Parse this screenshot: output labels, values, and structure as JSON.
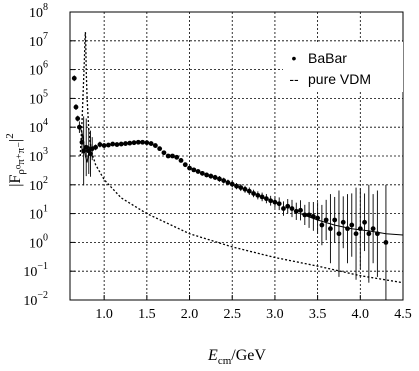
{
  "chart_data": {
    "type": "scatter",
    "title": "",
    "ylabel_main": "|F",
    "ylabel_sub": "ρ⁰π⁺π⁻",
    "ylabel_tail": "|",
    "ylabel_exp": "2",
    "xlabel_main": "E",
    "xlabel_sub": "cm",
    "xlabel_unit": "/GeV",
    "xlim": [
      0.6,
      4.5
    ],
    "ylim_exp": [
      -2,
      8
    ],
    "log_y": true,
    "grid": true,
    "legend_position": "right",
    "xticks": [
      1.0,
      1.5,
      2.0,
      2.5,
      3.0,
      3.5,
      4.0,
      4.5
    ],
    "xtick_labels": [
      "1.0",
      "1.5",
      "2.0",
      "2.5",
      "3.0",
      "3.5",
      "4.0",
      "4.5"
    ],
    "ytick_labels": [
      {
        "base": "10",
        "exp": "−2"
      },
      {
        "base": "10",
        "exp": "−1"
      },
      {
        "base": "10",
        "exp": "0"
      },
      {
        "base": "10",
        "exp": "1"
      },
      {
        "base": "10",
        "exp": "2"
      },
      {
        "base": "10",
        "exp": "3"
      },
      {
        "base": "10",
        "exp": "4"
      },
      {
        "base": "10",
        "exp": "5"
      },
      {
        "base": "10",
        "exp": "6"
      },
      {
        "base": "10",
        "exp": "7"
      },
      {
        "base": "10",
        "exp": "8"
      }
    ],
    "legend": [
      {
        "marker": "•",
        "label": "BaBar"
      },
      {
        "marker": "--",
        "label": "pure VDM"
      }
    ],
    "series": [
      {
        "name": "BaBar",
        "points": [
          [
            0.65,
            500000.0,
            0.1
          ],
          [
            0.67,
            50000.0,
            0.1
          ],
          [
            0.69,
            20000.0,
            0.1
          ],
          [
            0.71,
            10000.0,
            0.2
          ],
          [
            0.74,
            3000.0,
            0.4
          ],
          [
            0.76,
            1500.0,
            1.2
          ],
          [
            0.79,
            2000.0,
            1.0
          ],
          [
            0.82,
            1500.0,
            0.8
          ],
          [
            0.84,
            1200.0,
            0.8
          ],
          [
            0.86,
            1800.0,
            0.4
          ],
          [
            0.9,
            2000.0,
            0.1
          ],
          [
            0.95,
            2500.0,
            0.1
          ],
          [
            1.0,
            2300.0,
            0.08
          ],
          [
            1.05,
            2400.0,
            0.06
          ],
          [
            1.1,
            2600.0,
            0.05
          ],
          [
            1.15,
            2500.0,
            0.05
          ],
          [
            1.2,
            2600.0,
            0.05
          ],
          [
            1.25,
            2700.0,
            0.04
          ],
          [
            1.3,
            2800.0,
            0.04
          ],
          [
            1.35,
            2900.0,
            0.04
          ],
          [
            1.4,
            3000.0,
            0.04
          ],
          [
            1.45,
            3000.0,
            0.04
          ],
          [
            1.5,
            2900.0,
            0.04
          ],
          [
            1.55,
            2700.0,
            0.04
          ],
          [
            1.6,
            2300.0,
            0.05
          ],
          [
            1.65,
            1800.0,
            0.05
          ],
          [
            1.7,
            1300.0,
            0.05
          ],
          [
            1.75,
            1000.0,
            0.05
          ],
          [
            1.8,
            1000.0,
            0.05
          ],
          [
            1.85,
            900.0,
            0.06
          ],
          [
            1.9,
            700.0,
            0.06
          ],
          [
            1.95,
            500.0,
            0.07
          ],
          [
            2.0,
            380.0,
            0.07
          ],
          [
            2.05,
            330.0,
            0.07
          ],
          [
            2.1,
            290.0,
            0.08
          ],
          [
            2.15,
            250.0,
            0.08
          ],
          [
            2.2,
            220.0,
            0.08
          ],
          [
            2.25,
            200.0,
            0.09
          ],
          [
            2.3,
            180.0,
            0.09
          ],
          [
            2.35,
            160.0,
            0.1
          ],
          [
            2.4,
            140.0,
            0.1
          ],
          [
            2.45,
            120.0,
            0.1
          ],
          [
            2.5,
            105.0,
            0.11
          ],
          [
            2.55,
            90.0,
            0.11
          ],
          [
            2.6,
            80.0,
            0.12
          ],
          [
            2.65,
            70.0,
            0.12
          ],
          [
            2.7,
            60.0,
            0.13
          ],
          [
            2.75,
            50.0,
            0.13
          ],
          [
            2.8,
            43.0,
            0.14
          ],
          [
            2.85,
            38.0,
            0.15
          ],
          [
            2.9,
            33.0,
            0.16
          ],
          [
            2.95,
            28.0,
            0.17
          ],
          [
            3.0,
            25.0,
            0.2
          ],
          [
            3.05,
            22.0,
            0.22
          ],
          [
            3.1,
            15.0,
            0.25
          ],
          [
            3.15,
            18.0,
            0.25
          ],
          [
            3.2,
            15.0,
            0.3
          ],
          [
            3.25,
            12.0,
            0.3
          ],
          [
            3.3,
            13.0,
            0.35
          ],
          [
            3.35,
            9.0,
            0.35
          ],
          [
            3.4,
            9.0,
            0.45
          ],
          [
            3.45,
            8.0,
            0.5
          ],
          [
            3.5,
            7.0,
            0.55
          ],
          [
            3.55,
            4.0,
            0.7
          ],
          [
            3.6,
            6.0,
            0.7
          ],
          [
            3.65,
            3.0,
            1.2
          ],
          [
            3.7,
            6.0,
            0.8
          ],
          [
            3.75,
            2.0,
            1.5
          ],
          [
            3.8,
            5.0,
            0.9
          ],
          [
            3.85,
            3.0,
            1.2
          ],
          [
            3.9,
            4.0,
            1.1
          ],
          [
            3.95,
            2.0,
            1.6
          ],
          [
            4.0,
            3.0,
            1.4
          ],
          [
            4.05,
            5.0,
            1.0
          ],
          [
            4.1,
            2.0,
            1.7
          ],
          [
            4.15,
            3.0,
            1.2
          ],
          [
            4.2,
            2.0,
            1.5
          ],
          [
            4.3,
            1.0,
            2.0
          ]
        ]
      },
      {
        "name": "pure VDM",
        "x": [
          0.72,
          0.74,
          0.76,
          0.77,
          0.775,
          0.78,
          0.785,
          0.79,
          0.8,
          0.82,
          0.85,
          0.9,
          1.0,
          1.2,
          1.5,
          2.0,
          2.5,
          3.0,
          3.5,
          4.0,
          4.5
        ],
        "y": [
          1000.0,
          15000.0,
          500000.0,
          3000000.0,
          10000000.0,
          20000000.0,
          8000000.0,
          1000000.0,
          100000.0,
          8000.0,
          1500.0,
          500.0,
          150.0,
          35.0,
          10.0,
          2.0,
          0.7,
          0.3,
          0.15,
          0.07,
          0.04
        ]
      },
      {
        "name": "",
        "x": [
          0.72,
          0.75,
          0.78,
          0.8,
          0.83,
          0.86,
          0.9
        ],
        "y": [
          10000.0,
          5000.0,
          1000.0,
          600.0,
          2000.0,
          1500.0,
          2000.0
        ]
      },
      {
        "name": "",
        "x": [
          3.3,
          3.5,
          3.7,
          3.9,
          4.1,
          4.3,
          4.5
        ],
        "y": [
          10.0,
          6.0,
          4.0,
          3.0,
          2.5,
          2.0,
          1.8
        ]
      }
    ]
  }
}
